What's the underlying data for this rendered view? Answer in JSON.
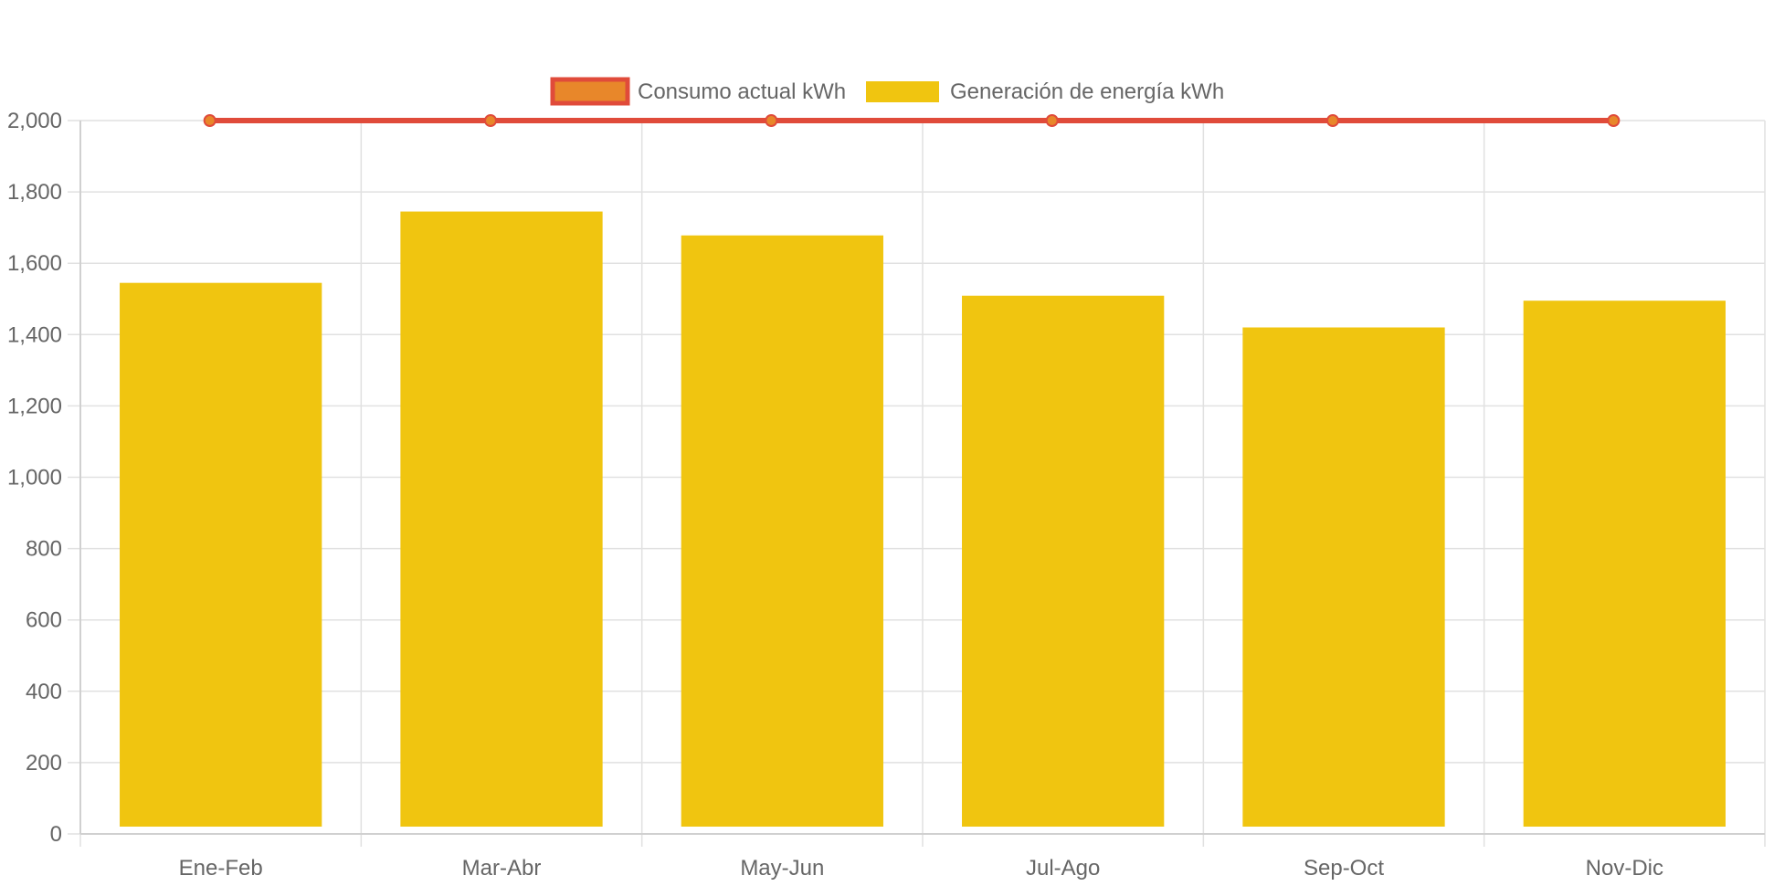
{
  "chart_data": {
    "type": "bar",
    "categories": [
      "Ene-Feb",
      "Mar-Abr",
      "May-Jun",
      "Jul-Ago",
      "Sep-Oct",
      "Nov-Dic"
    ],
    "series": [
      {
        "name": "Consumo actual kWh",
        "type": "line",
        "values": [
          2000,
          2000,
          2000,
          2000,
          2000,
          2000
        ],
        "line_color": "#E04B3A",
        "point_color": "#E8872A"
      },
      {
        "name": "Generación de energía kWh",
        "type": "bar",
        "values": [
          1545,
          1745,
          1678,
          1509,
          1420,
          1495
        ],
        "color": "#F0C510"
      }
    ],
    "ylim": [
      0,
      2000
    ],
    "yticks": [
      0,
      200,
      400,
      600,
      800,
      1000,
      1200,
      1400,
      1600,
      1800,
      2000
    ],
    "ytick_labels": [
      "0",
      "200",
      "400",
      "600",
      "800",
      "1,000",
      "1,200",
      "1,400",
      "1,600",
      "1,800",
      "2,000"
    ],
    "grid": true,
    "legend_position": "top-center",
    "colors": {
      "grid": "#E1E1E1",
      "text": "#666666"
    }
  }
}
